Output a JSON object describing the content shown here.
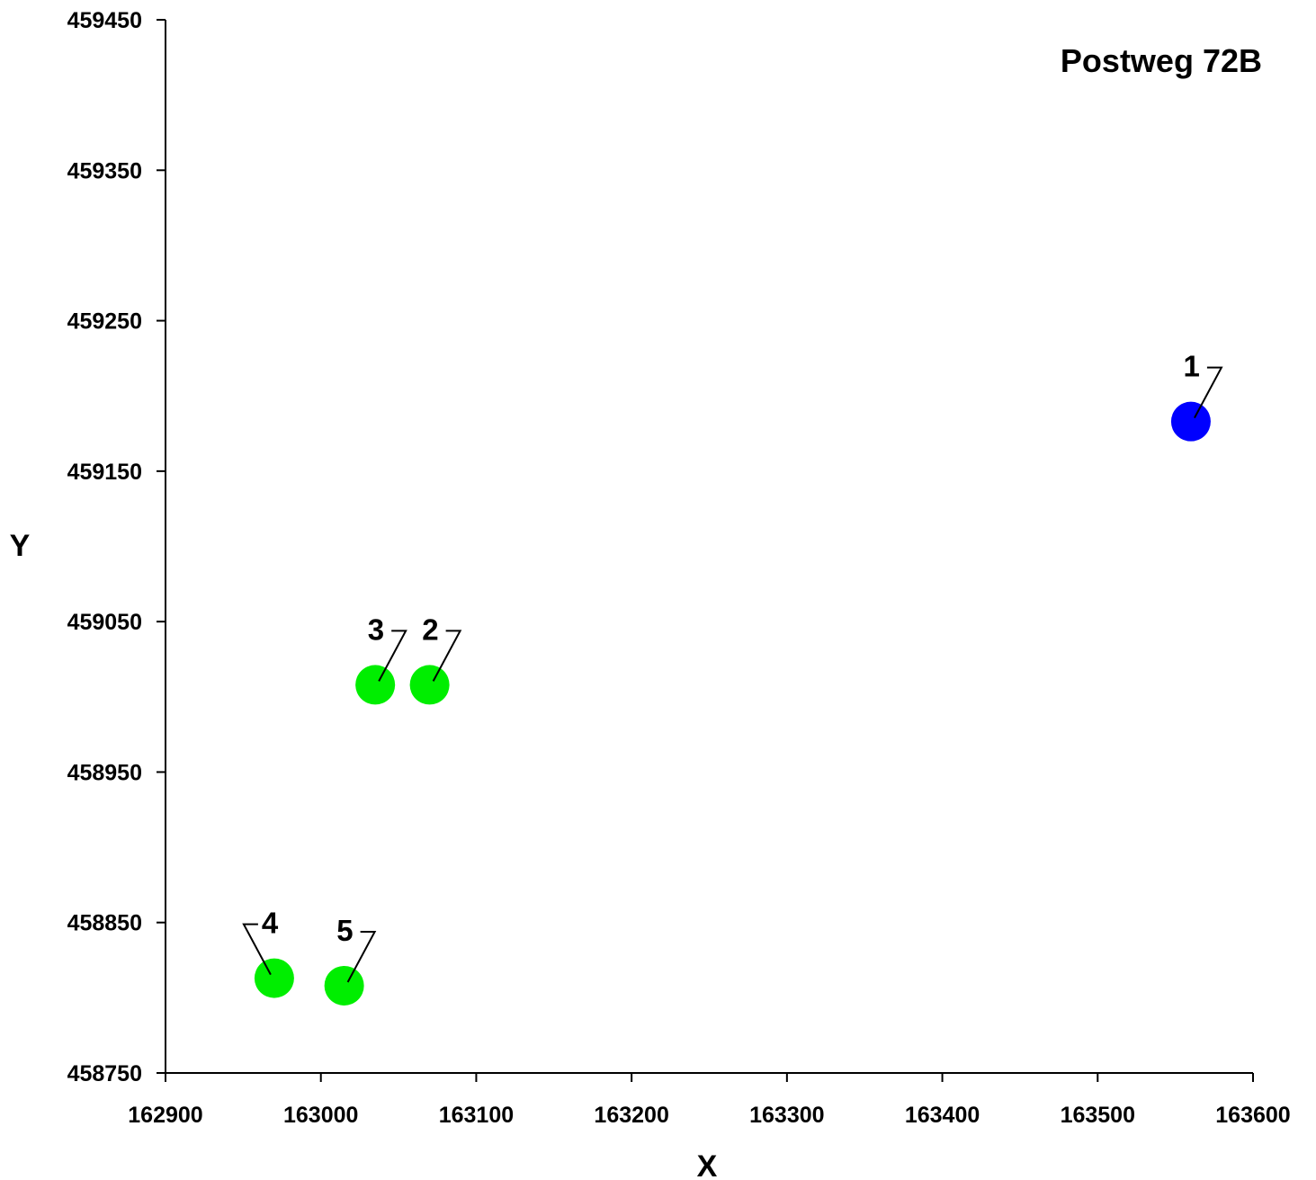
{
  "chart_data": {
    "type": "scatter",
    "title": "Postweg 72B",
    "xlabel": "X",
    "ylabel": "Y",
    "xlim": [
      162900,
      163600
    ],
    "ylim": [
      458750,
      459450
    ],
    "x_ticks": [
      "162900",
      "163000",
      "163100",
      "163200",
      "163300",
      "163400",
      "163500",
      "163600"
    ],
    "y_ticks": [
      "459450",
      "459350",
      "459250",
      "459150",
      "459050",
      "458950",
      "458850",
      "458750"
    ],
    "grid": false,
    "points": [
      {
        "label": "1",
        "x": 163560,
        "y": 459183,
        "color": "#0000ff"
      },
      {
        "label": "2",
        "x": 163070,
        "y": 459008,
        "color": "#00ee00"
      },
      {
        "label": "3",
        "x": 163035,
        "y": 459008,
        "color": "#00ee00"
      },
      {
        "label": "4",
        "x": 162970,
        "y": 458813,
        "color": "#00ee00"
      },
      {
        "label": "5",
        "x": 163015,
        "y": 458808,
        "color": "#00ee00"
      }
    ]
  }
}
